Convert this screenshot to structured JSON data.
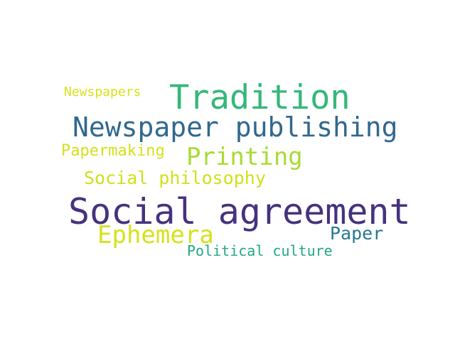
{
  "words": {
    "tradition": {
      "text": "Tradition",
      "color": "#35b779"
    },
    "newspaper_publishing": {
      "text": "Newspaper publishing",
      "color": "#31688e"
    },
    "newspapers": {
      "text": "Newspapers",
      "color": "#d8e219"
    },
    "papermaking": {
      "text": "Papermaking",
      "color": "#d2e21b"
    },
    "printing": {
      "text": "Printing",
      "color": "#a8db34"
    },
    "social_philosophy": {
      "text": "Social philosophy",
      "color": "#d0e11c"
    },
    "social_agreement": {
      "text": "Social agreement",
      "color": "#46327e"
    },
    "ephemera": {
      "text": "Ephemera",
      "color": "#d5e21a"
    },
    "paper": {
      "text": "Paper",
      "color": "#2a788e"
    },
    "political_culture": {
      "text": "Political culture",
      "color": "#22a884"
    }
  }
}
